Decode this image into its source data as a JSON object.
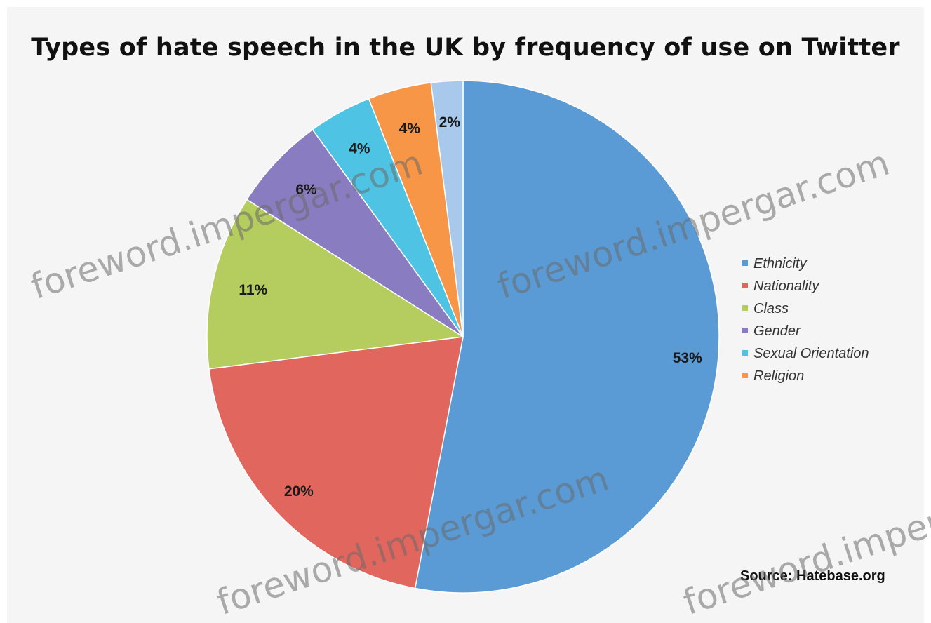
{
  "chart_data": {
    "type": "pie",
    "title": "Types of hate speech in the UK by frequency of use on Twitter",
    "slices": [
      {
        "name": "Ethnicity",
        "value": 53,
        "label": "53%",
        "color": "#5b9bd5"
      },
      {
        "name": "Nationality",
        "value": 20,
        "label": "20%",
        "color": "#e0665e"
      },
      {
        "name": "Class",
        "value": 11,
        "label": "11%",
        "color": "#b5cc5f"
      },
      {
        "name": "Gender",
        "value": 6,
        "label": "6%",
        "color": "#8a7cc0"
      },
      {
        "name": "Sexual Orientation",
        "value": 4,
        "label": "4%",
        "color": "#4fc3e3"
      },
      {
        "name": "Religion",
        "value": 4,
        "label": "4%",
        "color": "#f79646"
      },
      {
        "name": "",
        "value": 2,
        "label": "2%",
        "color": "#a9c9ec"
      }
    ],
    "legend_position": "right",
    "source": "Source: Hatebase.org"
  },
  "watermark": "foreword.impergar.com"
}
